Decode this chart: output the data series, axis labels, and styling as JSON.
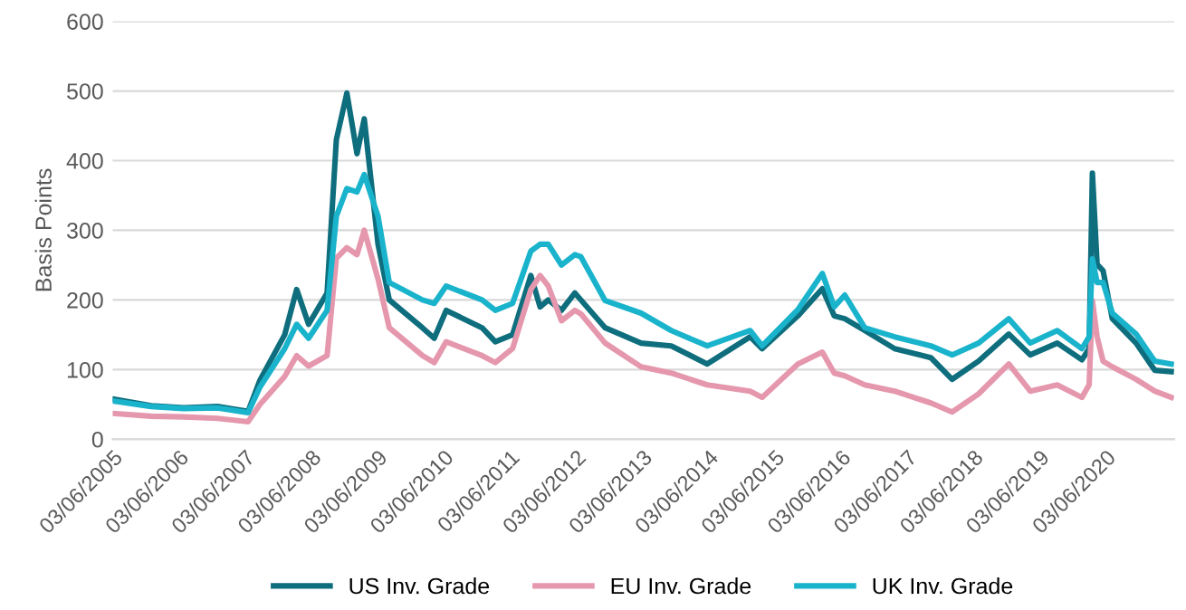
{
  "chart_data": {
    "type": "line",
    "ylabel": "Basis Points",
    "x": [
      "2005-06-03",
      "2006-01-01",
      "2006-07-01",
      "2007-01-01",
      "2007-06-20",
      "2007-08-25",
      "2008-01-08",
      "2008-03-14",
      "2008-05-19",
      "2008-08-29",
      "2008-10-19",
      "2008-12-16",
      "2009-02-10",
      "2009-03-22",
      "2009-06-06",
      "2009-08-07",
      "2010-02-06",
      "2010-04-12",
      "2010-06-17",
      "2011-01-01",
      "2011-03-15",
      "2011-06-18",
      "2011-09-27",
      "2011-11-17",
      "2012-01-01",
      "2012-03-14",
      "2012-05-27",
      "2012-06-29",
      "2012-11-10",
      "2013-05-27",
      "2013-11-10",
      "2014-05-27",
      "2015-01-19",
      "2015-03-26",
      "2015-10-09",
      "2016-02-21",
      "2016-04-27",
      "2016-06-24",
      "2016-10-12",
      "2017-03-26",
      "2017-10-12",
      "2018-02-06",
      "2018-07-02",
      "2018-12-16",
      "2019-04-13",
      "2019-09-09",
      "2020-01-23",
      "2020-03-03",
      "2020-03-21",
      "2020-04-16",
      "2020-05-19",
      "2020-07-09",
      "2020-11-17",
      "2021-02-28",
      "2021-05-30"
    ],
    "series": [
      {
        "name": "US Inv. Grade",
        "color": "#0e6e7d",
        "values": [
          58,
          48,
          45,
          47,
          40,
          85,
          150,
          215,
          165,
          210,
          430,
          497,
          410,
          460,
          280,
          200,
          160,
          145,
          185,
          160,
          140,
          150,
          235,
          190,
          200,
          185,
          210,
          200,
          160,
          138,
          134,
          108,
          147,
          130,
          177,
          216,
          177,
          173,
          156,
          130,
          117,
          86,
          112,
          151,
          121,
          138,
          114,
          130,
          382,
          251,
          242,
          173,
          138,
          99,
          97
        ]
      },
      {
        "name": "EU Inv. Grade",
        "color": "#e597ad",
        "values": [
          37,
          33,
          32,
          30,
          25,
          50,
          90,
          120,
          105,
          120,
          260,
          275,
          265,
          300,
          230,
          160,
          120,
          110,
          140,
          120,
          110,
          130,
          215,
          235,
          220,
          170,
          185,
          180,
          138,
          104,
          95,
          78,
          69,
          60,
          108,
          125,
          95,
          91,
          78,
          69,
          52,
          39,
          65,
          108,
          69,
          78,
          60,
          78,
          199,
          147,
          112,
          104,
          86,
          69,
          60
        ]
      },
      {
        "name": "UK Inv. Grade",
        "color": "#1ab3cc",
        "values": [
          55,
          47,
          44,
          45,
          38,
          75,
          130,
          165,
          145,
          185,
          320,
          360,
          355,
          380,
          320,
          225,
          200,
          195,
          220,
          200,
          185,
          195,
          270,
          280,
          280,
          250,
          265,
          262,
          199,
          181,
          156,
          134,
          156,
          134,
          186,
          238,
          190,
          207,
          160,
          147,
          134,
          121,
          138,
          173,
          138,
          156,
          130,
          147,
          259,
          225,
          225,
          181,
          151,
          112,
          108
        ]
      }
    ],
    "xlim": [
      "2005-06-03",
      "2021-06-15"
    ],
    "xticks": [
      {
        "value": "2005-06-03",
        "label": "03/06/2005"
      },
      {
        "value": "2006-06-03",
        "label": "03/06/2006"
      },
      {
        "value": "2007-06-03",
        "label": "03/06/2007"
      },
      {
        "value": "2008-06-03",
        "label": "03/06/2008"
      },
      {
        "value": "2009-06-03",
        "label": "03/06/2009"
      },
      {
        "value": "2010-06-03",
        "label": "03/06/2010"
      },
      {
        "value": "2011-06-03",
        "label": "03/06/2011"
      },
      {
        "value": "2012-06-03",
        "label": "03/06/2012"
      },
      {
        "value": "2013-06-03",
        "label": "03/06/2013"
      },
      {
        "value": "2014-06-03",
        "label": "03/06/2014"
      },
      {
        "value": "2015-06-03",
        "label": "03/06/2015"
      },
      {
        "value": "2016-06-03",
        "label": "03/06/2016"
      },
      {
        "value": "2017-06-03",
        "label": "03/06/2017"
      },
      {
        "value": "2018-06-03",
        "label": "03/06/2018"
      },
      {
        "value": "2019-06-03",
        "label": "03/06/2019"
      },
      {
        "value": "2020-06-03",
        "label": "03/06/2020"
      }
    ],
    "ylim": [
      0,
      600
    ],
    "yticks": [
      0,
      100,
      200,
      300,
      400,
      500,
      600
    ],
    "grid": "y",
    "legend": "bottom",
    "line_style": "solid",
    "marker": "none"
  }
}
